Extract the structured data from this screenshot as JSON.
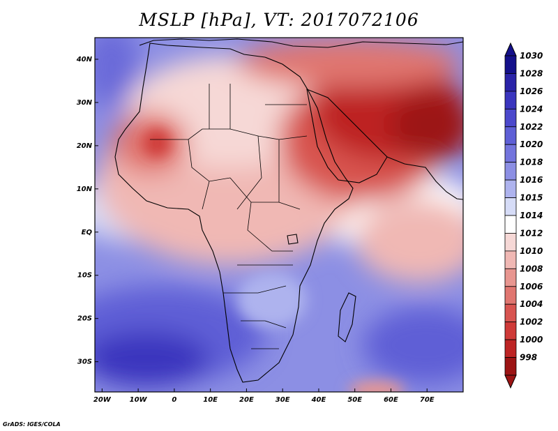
{
  "title": "MSLP [hPa], VT: 2017072106",
  "credit": "GrADS: IGES/COLA",
  "map": {
    "lon_range": [
      -22,
      80
    ],
    "lat_range": [
      -37,
      45
    ],
    "lon_ticks": [
      {
        "value": -20,
        "label": "20W"
      },
      {
        "value": -10,
        "label": "10W"
      },
      {
        "value": 0,
        "label": "0"
      },
      {
        "value": 10,
        "label": "10E"
      },
      {
        "value": 20,
        "label": "20E"
      },
      {
        "value": 30,
        "label": "30E"
      },
      {
        "value": 40,
        "label": "40E"
      },
      {
        "value": 50,
        "label": "50E"
      },
      {
        "value": 60,
        "label": "60E"
      },
      {
        "value": 70,
        "label": "70E"
      }
    ],
    "lat_ticks": [
      {
        "value": 40,
        "label": "40N"
      },
      {
        "value": 30,
        "label": "30N"
      },
      {
        "value": 20,
        "label": "20N"
      },
      {
        "value": 10,
        "label": "10N"
      },
      {
        "value": 0,
        "label": "EQ"
      },
      {
        "value": -10,
        "label": "10S"
      },
      {
        "value": -20,
        "label": "20S"
      },
      {
        "value": -30,
        "label": "30S"
      }
    ]
  },
  "colorbar": {
    "levels": [
      {
        "label": "1030",
        "color": "#14108a"
      },
      {
        "label": "1028",
        "color": "#2a23a8"
      },
      {
        "label": "1026",
        "color": "#3a35be"
      },
      {
        "label": "1024",
        "color": "#4b48cc"
      },
      {
        "label": "1022",
        "color": "#5e5fd6"
      },
      {
        "label": "1020",
        "color": "#7374dd"
      },
      {
        "label": "1018",
        "color": "#8c8fe4"
      },
      {
        "label": "1016",
        "color": "#aeb3ee"
      },
      {
        "label": "1015",
        "color": "#d6dcf7"
      },
      {
        "label": "1014",
        "color": "#ffffff"
      },
      {
        "label": "1012",
        "color": "#f6d8d6"
      },
      {
        "label": "1010",
        "color": "#f0b8b4"
      },
      {
        "label": "1008",
        "color": "#e89690"
      },
      {
        "label": "1006",
        "color": "#e07670"
      },
      {
        "label": "1004",
        "color": "#d85450"
      },
      {
        "label": "1002",
        "color": "#cf3a38"
      },
      {
        "label": "1000",
        "color": "#bd2424"
      },
      {
        "label": "998",
        "color": "#9c1414"
      }
    ]
  }
}
